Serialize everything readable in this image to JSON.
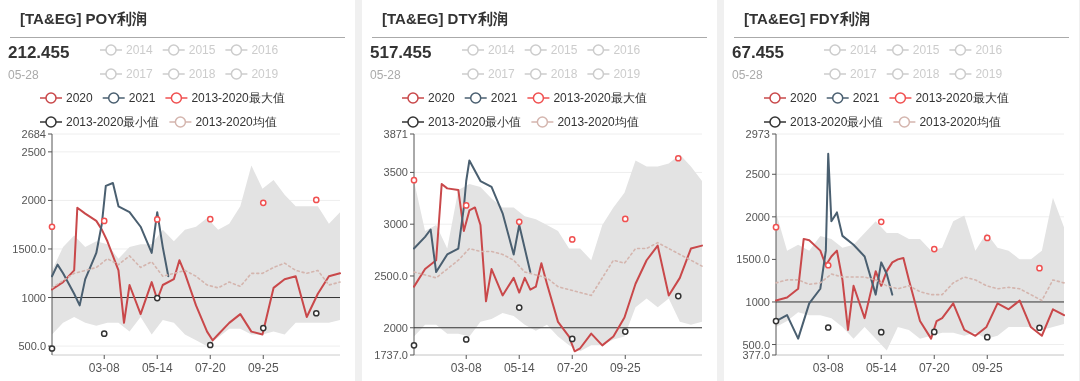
{
  "chart_data": [
    {
      "type": "line",
      "title": "[TA&EG] POY利润",
      "annotations": [
        "212.455",
        "05-28"
      ],
      "legend": "top",
      "grid": "y",
      "x": [
        "--01-01",
        "--01-15",
        "--01-29",
        "--02-12",
        "--02-26",
        "--03-12",
        "--03-26",
        "--04-09",
        "--04-23",
        "--05-07",
        "--05-21",
        "--06-04",
        "--06-18",
        "--07-02",
        "--07-16",
        "--07-30",
        "--08-13",
        "--08-27",
        "--09-10",
        "--09-24",
        "--10-08",
        "--10-22",
        "--11-05",
        "--11-19",
        "--12-03",
        "--12-17",
        "--12-31"
      ],
      "xlim": [
        "--01-01",
        "--12-31"
      ],
      "xticks": [
        {
          "value": "--03-08",
          "label": "03-08"
        },
        {
          "value": "--05-14",
          "label": "05-14"
        },
        {
          "value": "--07-20",
          "label": "07-20"
        },
        {
          "value": "--09-25",
          "label": "09-25"
        }
      ],
      "ylim": [
        408,
        2684
      ],
      "yticks": [
        {
          "value": 500,
          "label": "500.0"
        },
        1000,
        {
          "value": 1500,
          "label": "1500.0"
        },
        2000,
        2500,
        2684
      ],
      "ref_lines": [
        {
          "axis": "y",
          "value": 1000,
          "color": "#333333"
        }
      ],
      "series": [
        {
          "name": "2014",
          "color": "#cccccc",
          "values": [
            null,
            null,
            null,
            null,
            null,
            null,
            null,
            null,
            null,
            null,
            null,
            null,
            null,
            null,
            null,
            null,
            null,
            null,
            null,
            null,
            null,
            null,
            null,
            null,
            null,
            null,
            null
          ]
        },
        {
          "name": "2015",
          "color": "#cccccc",
          "values": [
            null,
            null,
            null,
            null,
            null,
            null,
            null,
            null,
            null,
            null,
            null,
            null,
            null,
            null,
            null,
            null,
            null,
            null,
            null,
            null,
            null,
            null,
            null,
            null,
            null,
            null,
            null
          ]
        },
        {
          "name": "2016",
          "color": "#cccccc",
          "values": [
            null,
            null,
            null,
            null,
            null,
            null,
            null,
            null,
            null,
            null,
            null,
            null,
            null,
            null,
            null,
            null,
            null,
            null,
            null,
            null,
            null,
            null,
            null,
            null,
            null,
            null,
            null
          ]
        },
        {
          "name": "2017",
          "color": "#cccccc",
          "values": [
            null,
            null,
            null,
            null,
            null,
            null,
            null,
            null,
            null,
            null,
            null,
            null,
            null,
            null,
            null,
            null,
            null,
            null,
            null,
            null,
            null,
            null,
            null,
            null,
            null,
            null,
            null
          ]
        },
        {
          "name": "2018",
          "color": "#cccccc",
          "values": [
            null,
            null,
            null,
            null,
            null,
            null,
            null,
            null,
            null,
            null,
            null,
            null,
            null,
            null,
            null,
            null,
            null,
            null,
            null,
            null,
            null,
            null,
            null,
            null,
            null,
            null,
            null
          ]
        },
        {
          "name": "2019",
          "color": "#cccccc",
          "values": [
            null,
            null,
            null,
            null,
            null,
            null,
            null,
            null,
            null,
            null,
            null,
            null,
            null,
            null,
            null,
            null,
            null,
            null,
            null,
            null,
            null,
            null,
            null,
            null,
            null,
            null,
            null
          ]
        },
        {
          "name": "2020",
          "color": "#c9484a",
          "x": [
            "--01-01",
            "--01-15",
            "--01-29",
            "--02-02",
            "--02-12",
            "--02-26",
            "--03-05",
            "--03-12",
            "--03-26",
            "--04-02",
            "--04-09",
            "--04-23",
            "--05-07",
            "--05-14",
            "--05-21",
            "--06-04",
            "--06-11",
            "--06-18",
            "--07-02",
            "--07-16",
            "--07-23",
            "--07-30",
            "--08-13",
            "--08-27",
            "--09-10",
            "--09-24",
            "--10-08",
            "--10-22",
            "--11-05",
            "--11-19",
            "--12-03",
            "--12-17",
            "--12-31"
          ],
          "values": [
            1084,
            1159,
            1279,
            1924,
            1864,
            1789,
            1699,
            1579,
            1279,
            739,
            1129,
            829,
            1159,
            979,
            1129,
            1189,
            1384,
            1249,
            919,
            649,
            559,
            619,
            739,
            829,
            649,
            619,
            1099,
            1189,
            1219,
            799,
            1039,
            1219,
            1249
          ]
        },
        {
          "name": "2021",
          "color": "#4a5f70",
          "x": [
            "--01-01",
            "--01-08",
            "--01-15",
            "--01-29",
            "--02-05",
            "--02-12",
            "--02-26",
            "--03-05",
            "--03-10",
            "--03-19",
            "--03-26",
            "--04-09",
            "--04-23",
            "--05-07",
            "--05-14",
            "--05-21",
            "--05-28"
          ],
          "values": [
            1219,
            1339,
            1249,
            1039,
            919,
            1189,
            1459,
            1759,
            2149,
            2179,
            1939,
            1879,
            1729,
            1459,
            1879,
            1519,
            1219
          ]
        },
        {
          "name": "2013-2020最大值",
          "type": "scatter",
          "marker": "circle",
          "color": "#f05050",
          "x": [
            "--01-01",
            "--03-08",
            "--05-14",
            "--07-20",
            "--09-25",
            "--12-01"
          ],
          "values": [
            1729,
            1789,
            1804,
            1807,
            1975,
            2005
          ]
        },
        {
          "name": "2013-2020最小值",
          "type": "scatter",
          "marker": "circle",
          "color": "#333333",
          "x": [
            "--01-01",
            "--03-08",
            "--05-14",
            "--07-20",
            "--09-25",
            "--12-01"
          ],
          "values": [
            475,
            628,
            994,
            511,
            685,
            838
          ]
        },
        {
          "name": "2013-2020均值",
          "color": "#d4b5ae",
          "line_style": "dotted",
          "values": [
            1099,
            1174,
            1249,
            1279,
            1309,
            1399,
            1339,
            1429,
            1309,
            1369,
            1219,
            1249,
            1279,
            1219,
            1129,
            1099,
            1159,
            1114,
            1249,
            1249,
            1309,
            1354,
            1279,
            1249,
            1279,
            1129,
            1159
          ],
          "upper": [
            1279,
            1519,
            1639,
            1519,
            1579,
            1549,
            1399,
            1519,
            1549,
            1549,
            1699,
            1579,
            1699,
            1729,
            1819,
            1699,
            1759,
            1939,
            2359,
            2119,
            2209,
            2059,
            1939,
            1939,
            1939,
            1759,
            1879
          ],
          "lower": [
            619,
            739,
            799,
            739,
            709,
            739,
            739,
            649,
            799,
            619,
            769,
            739,
            619,
            559,
            499,
            589,
            679,
            679,
            619,
            619,
            649,
            619,
            739,
            739,
            739,
            739,
            769
          ]
        }
      ]
    },
    {
      "type": "line",
      "title": "[TA&EG] DTY利润",
      "annotations": [
        "517.455",
        "05-28"
      ],
      "legend": "top",
      "grid": "y",
      "x": [
        "--01-01",
        "--01-15",
        "--01-29",
        "--02-12",
        "--02-26",
        "--03-12",
        "--03-26",
        "--04-09",
        "--04-23",
        "--05-07",
        "--05-21",
        "--06-04",
        "--06-18",
        "--07-02",
        "--07-16",
        "--07-30",
        "--08-13",
        "--08-27",
        "--09-10",
        "--09-24",
        "--10-08",
        "--10-22",
        "--11-05",
        "--11-19",
        "--12-03",
        "--12-17",
        "--12-31"
      ],
      "xlim": [
        "--01-01",
        "--12-31"
      ],
      "xticks": [
        {
          "value": "--03-08",
          "label": "03-08"
        },
        {
          "value": "--05-14",
          "label": "05-14"
        },
        {
          "value": "--07-20",
          "label": "07-20"
        },
        {
          "value": "--09-25",
          "label": "09-25"
        }
      ],
      "ylim": [
        1737,
        3871
      ],
      "yticks": [
        {
          "value": 1737,
          "label": "1737.0"
        },
        2000,
        {
          "value": 2500,
          "label": "2500.0"
        },
        3000,
        3500,
        3871
      ],
      "ref_lines": [
        {
          "axis": "y",
          "value": 2000,
          "color": "#333333"
        }
      ],
      "series": [
        {
          "name": "2014",
          "color": "#cccccc",
          "values": [
            null,
            null,
            null,
            null,
            null,
            null,
            null,
            null,
            null,
            null,
            null,
            null,
            null,
            null,
            null,
            null,
            null,
            null,
            null,
            null,
            null,
            null,
            null,
            null,
            null,
            null,
            null
          ]
        },
        {
          "name": "2015",
          "color": "#cccccc",
          "values": [
            null,
            null,
            null,
            null,
            null,
            null,
            null,
            null,
            null,
            null,
            null,
            null,
            null,
            null,
            null,
            null,
            null,
            null,
            null,
            null,
            null,
            null,
            null,
            null,
            null,
            null,
            null
          ]
        },
        {
          "name": "2016",
          "color": "#cccccc",
          "values": [
            null,
            null,
            null,
            null,
            null,
            null,
            null,
            null,
            null,
            null,
            null,
            null,
            null,
            null,
            null,
            null,
            null,
            null,
            null,
            null,
            null,
            null,
            null,
            null,
            null,
            null,
            null
          ]
        },
        {
          "name": "2017",
          "color": "#cccccc",
          "values": [
            null,
            null,
            null,
            null,
            null,
            null,
            null,
            null,
            null,
            null,
            null,
            null,
            null,
            null,
            null,
            null,
            null,
            null,
            null,
            null,
            null,
            null,
            null,
            null,
            null,
            null,
            null
          ]
        },
        {
          "name": "2018",
          "color": "#cccccc",
          "values": [
            null,
            null,
            null,
            null,
            null,
            null,
            null,
            null,
            null,
            null,
            null,
            null,
            null,
            null,
            null,
            null,
            null,
            null,
            null,
            null,
            null,
            null,
            null,
            null,
            null,
            null,
            null
          ]
        },
        {
          "name": "2019",
          "color": "#cccccc",
          "values": [
            null,
            null,
            null,
            null,
            null,
            null,
            null,
            null,
            null,
            null,
            null,
            null,
            null,
            null,
            null,
            null,
            null,
            null,
            null,
            null,
            null,
            null,
            null,
            null,
            null,
            null,
            null
          ]
        },
        {
          "name": "2020",
          "color": "#c9484a",
          "x": [
            "--01-01",
            "--01-15",
            "--01-29",
            "--02-05",
            "--02-12",
            "--02-26",
            "--03-05",
            "--03-12",
            "--03-19",
            "--03-26",
            "--04-02",
            "--04-09",
            "--04-23",
            "--05-07",
            "--05-14",
            "--05-21",
            "--05-28",
            "--06-04",
            "--06-11",
            "--06-18",
            "--07-02",
            "--07-16",
            "--07-23",
            "--07-30",
            "--08-13",
            "--08-27",
            "--09-10",
            "--09-24",
            "--10-08",
            "--10-22",
            "--11-05",
            "--11-19",
            "--12-03",
            "--12-17",
            "--12-31"
          ],
          "values": [
            2397,
            2567,
            2652,
            3388,
            3346,
            3331,
            2935,
            3133,
            3162,
            2992,
            2255,
            2567,
            2312,
            2482,
            2340,
            2482,
            2368,
            2397,
            2623,
            2425,
            2057,
            1915,
            1773,
            1802,
            1943,
            1830,
            1915,
            2099,
            2425,
            2652,
            2793,
            2312,
            2482,
            2765,
            2793
          ]
        },
        {
          "name": "2021",
          "color": "#4a5f70",
          "x": [
            "--01-01",
            "--01-15",
            "--01-22",
            "--01-29",
            "--02-12",
            "--02-26",
            "--03-05",
            "--03-08",
            "--03-12",
            "--03-26",
            "--04-09",
            "--04-23",
            "--05-07",
            "--05-14",
            "--05-21",
            "--05-28"
          ],
          "values": [
            2765,
            2878,
            2949,
            2538,
            2708,
            2765,
            3162,
            3417,
            3615,
            3417,
            3360,
            3105,
            2708,
            2992,
            2765,
            2538
          ]
        },
        {
          "name": "2013-2020最大值",
          "type": "scatter",
          "marker": "circle",
          "color": "#f05050",
          "x": [
            "--01-01",
            "--03-08",
            "--05-14",
            "--07-20",
            "--09-25",
            "--12-01"
          ],
          "values": [
            3425,
            3181,
            3023,
            2853,
            3051,
            3637
          ]
        },
        {
          "name": "2013-2020最小值",
          "type": "scatter",
          "marker": "circle",
          "color": "#333333",
          "x": [
            "--01-01",
            "--03-08",
            "--05-14",
            "--07-20",
            "--09-25",
            "--12-01"
          ],
          "values": [
            1830,
            1887,
            2195,
            1892,
            1963,
            2306
          ]
        },
        {
          "name": "2013-2020均值",
          "color": "#d4b5ae",
          "line_style": "dotted",
          "values": [
            2538,
            2510,
            2482,
            2567,
            2652,
            2765,
            2737,
            2737,
            2708,
            2652,
            2538,
            2510,
            2482,
            2397,
            2368,
            2340,
            2312,
            2482,
            2652,
            2623,
            2765,
            2765,
            2822,
            2765,
            2708,
            2652,
            2595
          ],
          "upper": [
            3417,
            2935,
            2992,
            2765,
            3331,
            3388,
            3360,
            3247,
            3162,
            3162,
            3077,
            3048,
            2992,
            2935,
            2765,
            2765,
            2652,
            2992,
            3162,
            3303,
            3615,
            3558,
            3558,
            3587,
            3672,
            3558,
            3417
          ],
          "lower": [
            1915,
            2028,
            2028,
            1943,
            1943,
            1915,
            2057,
            2085,
            2142,
            2113,
            2028,
            1972,
            2028,
            1915,
            1830,
            1773,
            1830,
            1830,
            1887,
            1915,
            2198,
            2283,
            2198,
            2283,
            2057,
            2028,
            2057
          ]
        }
      ]
    },
    {
      "type": "line",
      "title": "[TA&EG] FDY利润",
      "annotations": [
        "67.455",
        "05-28"
      ],
      "legend": "top",
      "grid": "y",
      "x": [
        "--01-01",
        "--01-15",
        "--01-29",
        "--02-12",
        "--02-26",
        "--03-12",
        "--03-26",
        "--04-09",
        "--04-23",
        "--05-07",
        "--05-21",
        "--06-04",
        "--06-18",
        "--07-02",
        "--07-16",
        "--07-30",
        "--08-13",
        "--08-27",
        "--09-10",
        "--09-24",
        "--10-08",
        "--10-22",
        "--11-05",
        "--11-19",
        "--12-03",
        "--12-17",
        "--12-31"
      ],
      "xlim": [
        "--01-01",
        "--12-31"
      ],
      "xticks": [
        {
          "value": "--03-08",
          "label": "03-08"
        },
        {
          "value": "--05-14",
          "label": "05-14"
        },
        {
          "value": "--07-20",
          "label": "07-20"
        },
        {
          "value": "--09-25",
          "label": "09-25"
        }
      ],
      "ylim": [
        377,
        2973
      ],
      "yticks": [
        {
          "value": 377,
          "label": "377.0"
        },
        {
          "value": 500,
          "label": "500.0"
        },
        1000,
        {
          "value": 1500,
          "label": "1500.0"
        },
        2000,
        2500,
        2973
      ],
      "ref_lines": [
        {
          "axis": "y",
          "value": 1000,
          "color": "#333333"
        }
      ],
      "series": [
        {
          "name": "2014",
          "color": "#cccccc",
          "values": [
            null,
            null,
            null,
            null,
            null,
            null,
            null,
            null,
            null,
            null,
            null,
            null,
            null,
            null,
            null,
            null,
            null,
            null,
            null,
            null,
            null,
            null,
            null,
            null,
            null,
            null,
            null
          ]
        },
        {
          "name": "2015",
          "color": "#cccccc",
          "values": [
            null,
            null,
            null,
            null,
            null,
            null,
            null,
            null,
            null,
            null,
            null,
            null,
            null,
            null,
            null,
            null,
            null,
            null,
            null,
            null,
            null,
            null,
            null,
            null,
            null,
            null,
            null
          ]
        },
        {
          "name": "2016",
          "color": "#cccccc",
          "values": [
            null,
            null,
            null,
            null,
            null,
            null,
            null,
            null,
            null,
            null,
            null,
            null,
            null,
            null,
            null,
            null,
            null,
            null,
            null,
            null,
            null,
            null,
            null,
            null,
            null,
            null,
            null
          ]
        },
        {
          "name": "2017",
          "color": "#cccccc",
          "values": [
            null,
            null,
            null,
            null,
            null,
            null,
            null,
            null,
            null,
            null,
            null,
            null,
            null,
            null,
            null,
            null,
            null,
            null,
            null,
            null,
            null,
            null,
            null,
            null,
            null,
            null,
            null
          ]
        },
        {
          "name": "2018",
          "color": "#cccccc",
          "values": [
            null,
            null,
            null,
            null,
            null,
            null,
            null,
            null,
            null,
            null,
            null,
            null,
            null,
            null,
            null,
            null,
            null,
            null,
            null,
            null,
            null,
            null,
            null,
            null,
            null,
            null,
            null
          ]
        },
        {
          "name": "2019",
          "color": "#cccccc",
          "values": [
            null,
            null,
            null,
            null,
            null,
            null,
            null,
            null,
            null,
            null,
            null,
            null,
            null,
            null,
            null,
            null,
            null,
            null,
            null,
            null,
            null,
            null,
            null,
            null,
            null,
            null,
            null
          ]
        },
        {
          "name": "2020",
          "color": "#c9484a",
          "x": [
            "--01-01",
            "--01-15",
            "--01-29",
            "--02-05",
            "--02-12",
            "--02-26",
            "--03-05",
            "--03-12",
            "--03-19",
            "--03-26",
            "--04-02",
            "--04-09",
            "--04-23",
            "--05-07",
            "--05-14",
            "--05-21",
            "--05-28",
            "--06-04",
            "--06-11",
            "--06-18",
            "--07-02",
            "--07-16",
            "--07-23",
            "--07-30",
            "--08-13",
            "--08-27",
            "--09-10",
            "--09-24",
            "--10-08",
            "--10-22",
            "--11-05",
            "--11-19",
            "--12-03",
            "--12-17",
            "--12-31"
          ],
          "values": [
            1017,
            1052,
            1155,
            1741,
            1724,
            1603,
            1431,
            1534,
            1603,
            1259,
            672,
            1190,
            810,
            1362,
            1190,
            1362,
            1465,
            1500,
            1517,
            1259,
            776,
            569,
            776,
            810,
            983,
            672,
            603,
            707,
            983,
            914,
            1017,
            707,
            603,
            914,
            845
          ]
        },
        {
          "name": "2021",
          "color": "#4a5f70",
          "x": [
            "--01-01",
            "--01-15",
            "--01-29",
            "--02-12",
            "--02-26",
            "--03-05",
            "--03-08",
            "--03-12",
            "--03-19",
            "--03-26",
            "--04-09",
            "--04-23",
            "--05-07",
            "--05-14",
            "--05-21",
            "--05-28"
          ],
          "values": [
            776,
            845,
            569,
            983,
            1155,
            1603,
            2741,
            1948,
            2052,
            1776,
            1672,
            1534,
            1086,
            1465,
            1328,
            1086
          ]
        },
        {
          "name": "2013-2020最大值",
          "type": "scatter",
          "marker": "circle",
          "color": "#f05050",
          "x": [
            "--01-01",
            "--03-08",
            "--05-14",
            "--07-20",
            "--09-25",
            "--11-30"
          ],
          "values": [
            1879,
            1431,
            1941,
            1621,
            1752,
            1397
          ]
        },
        {
          "name": "2013-2020最小值",
          "type": "scatter",
          "marker": "circle",
          "color": "#333333",
          "x": [
            "--01-01",
            "--03-08",
            "--05-14",
            "--07-20",
            "--09-25",
            "--11-30"
          ],
          "values": [
            776,
            700,
            645,
            648,
            586,
            697
          ]
        },
        {
          "name": "2013-2020均值",
          "color": "#d4b5ae",
          "line_style": "dotted",
          "values": [
            1224,
            1259,
            1259,
            1207,
            1224,
            1328,
            1293,
            1293,
            1293,
            1259,
            1190,
            1155,
            1190,
            1121,
            1086,
            1086,
            1224,
            1293,
            1259,
            1190,
            1155,
            1172,
            1155,
            1086,
            1017,
            1259,
            1224
          ],
          "upper": [
            2052,
            1603,
            1672,
            1603,
            1776,
            1741,
            1638,
            1672,
            1810,
            1948,
            1810,
            1810,
            1741,
            1741,
            1603,
            1638,
            1948,
            2017,
            1603,
            1810,
            1638,
            1603,
            1500,
            1500,
            1603,
            2224,
            1879
          ],
          "lower": [
            707,
            776,
            879,
            845,
            845,
            810,
            707,
            569,
            707,
            569,
            431,
            707,
            672,
            569,
            603,
            638,
            638,
            603,
            638,
            569,
            603,
            707,
            707,
            707,
            672,
            707,
            741
          ]
        }
      ]
    }
  ]
}
